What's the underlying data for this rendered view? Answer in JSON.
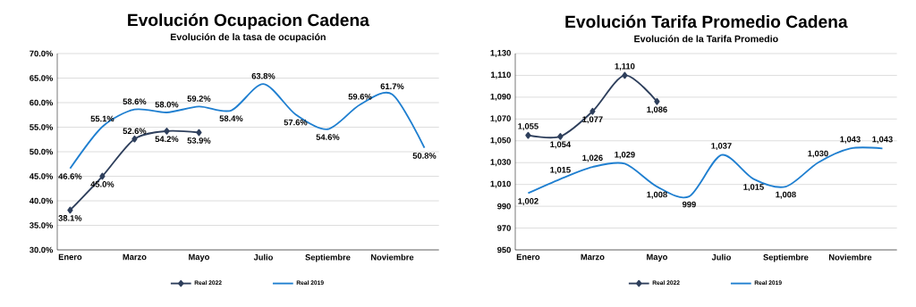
{
  "chart_data": [
    {
      "type": "line",
      "title": "Evolución Ocupacion Cadena",
      "subtitle": "Evolución de la tasa de ocupación",
      "categories": [
        "Enero",
        null,
        "Marzo",
        null,
        "Mayo",
        null,
        "Julio",
        null,
        "Septiembre",
        null,
        "Noviembre",
        null
      ],
      "series": [
        {
          "name": "Real 2022",
          "color": "#2e3f5c",
          "marker": "diamond",
          "values": [
            38.1,
            45.0,
            52.6,
            54.2,
            53.9,
            null,
            null,
            null,
            null,
            null,
            null,
            null
          ],
          "value_labels": [
            "38.1%",
            "45.0%",
            "52.6%",
            "54.2%",
            "53.9%",
            null,
            null,
            null,
            null,
            null,
            null,
            null
          ]
        },
        {
          "name": "Real 2019",
          "color": "#1f7fd0",
          "marker": "none",
          "values": [
            46.6,
            55.1,
            58.6,
            58.0,
            59.2,
            58.4,
            63.8,
            57.6,
            54.6,
            59.6,
            61.7,
            50.8
          ],
          "value_labels": [
            "46.6%",
            "55.1%",
            "58.6%",
            "58.0%",
            "59.2%",
            "58.4%",
            "63.8%",
            "57.6%",
            "54.6%",
            "59.6%",
            "61.7%",
            "50.8%"
          ]
        }
      ],
      "ylim": [
        30,
        70
      ],
      "yticks": [
        {
          "value": 30,
          "label": "30.0%"
        },
        {
          "value": 35,
          "label": "35.0%"
        },
        {
          "value": 40,
          "label": "40.0%"
        },
        {
          "value": 45,
          "label": "45.0%"
        },
        {
          "value": 50,
          "label": "50.0%"
        },
        {
          "value": 55,
          "label": "55.0%"
        },
        {
          "value": 60,
          "label": "60.0%"
        },
        {
          "value": 65,
          "label": "65.0%"
        },
        {
          "value": 70,
          "label": "70.0%"
        }
      ],
      "grid": "y",
      "legend": "bottom"
    },
    {
      "type": "line",
      "title": "Evolución Tarifa Promedio Cadena",
      "subtitle": "Evolución de la Tarifa Promedio",
      "categories": [
        "Enero",
        null,
        "Marzo",
        null,
        "Mayo",
        null,
        "Julio",
        null,
        "Septiembre",
        null,
        "Noviembre",
        null
      ],
      "series": [
        {
          "name": "Real 2022",
          "color": "#2e3f5c",
          "marker": "diamond",
          "values": [
            1055,
            1054,
            1077,
            1110,
            1086,
            null,
            null,
            null,
            null,
            null,
            null,
            null
          ],
          "value_labels": [
            "1,055",
            "1,054",
            "1,077",
            "1,110",
            "1,086",
            null,
            null,
            null,
            null,
            null,
            null,
            null
          ]
        },
        {
          "name": "Real 2019",
          "color": "#1f7fd0",
          "marker": "none",
          "values": [
            1002,
            1015,
            1026,
            1029,
            1008,
            999,
            1037,
            1015,
            1008,
            1030,
            1043,
            1043
          ],
          "value_labels": [
            "1,002",
            "1,015",
            "1,026",
            "1,029",
            "1,008",
            "999",
            "1,037",
            "1,015",
            "1,008",
            "1,030",
            "1,043",
            "1,043"
          ]
        }
      ],
      "ylim": [
        950,
        1130
      ],
      "yticks": [
        {
          "value": 950,
          "label": "950"
        },
        {
          "value": 970,
          "label": "970"
        },
        {
          "value": 990,
          "label": "990"
        },
        {
          "value": 1010,
          "label": "1,010"
        },
        {
          "value": 1030,
          "label": "1,030"
        },
        {
          "value": 1050,
          "label": "1,050"
        },
        {
          "value": 1070,
          "label": "1,070"
        },
        {
          "value": 1090,
          "label": "1,090"
        },
        {
          "value": 1110,
          "label": "1,110"
        },
        {
          "value": 1130,
          "label": "1,130"
        }
      ],
      "grid": "y",
      "legend": "bottom"
    }
  ]
}
